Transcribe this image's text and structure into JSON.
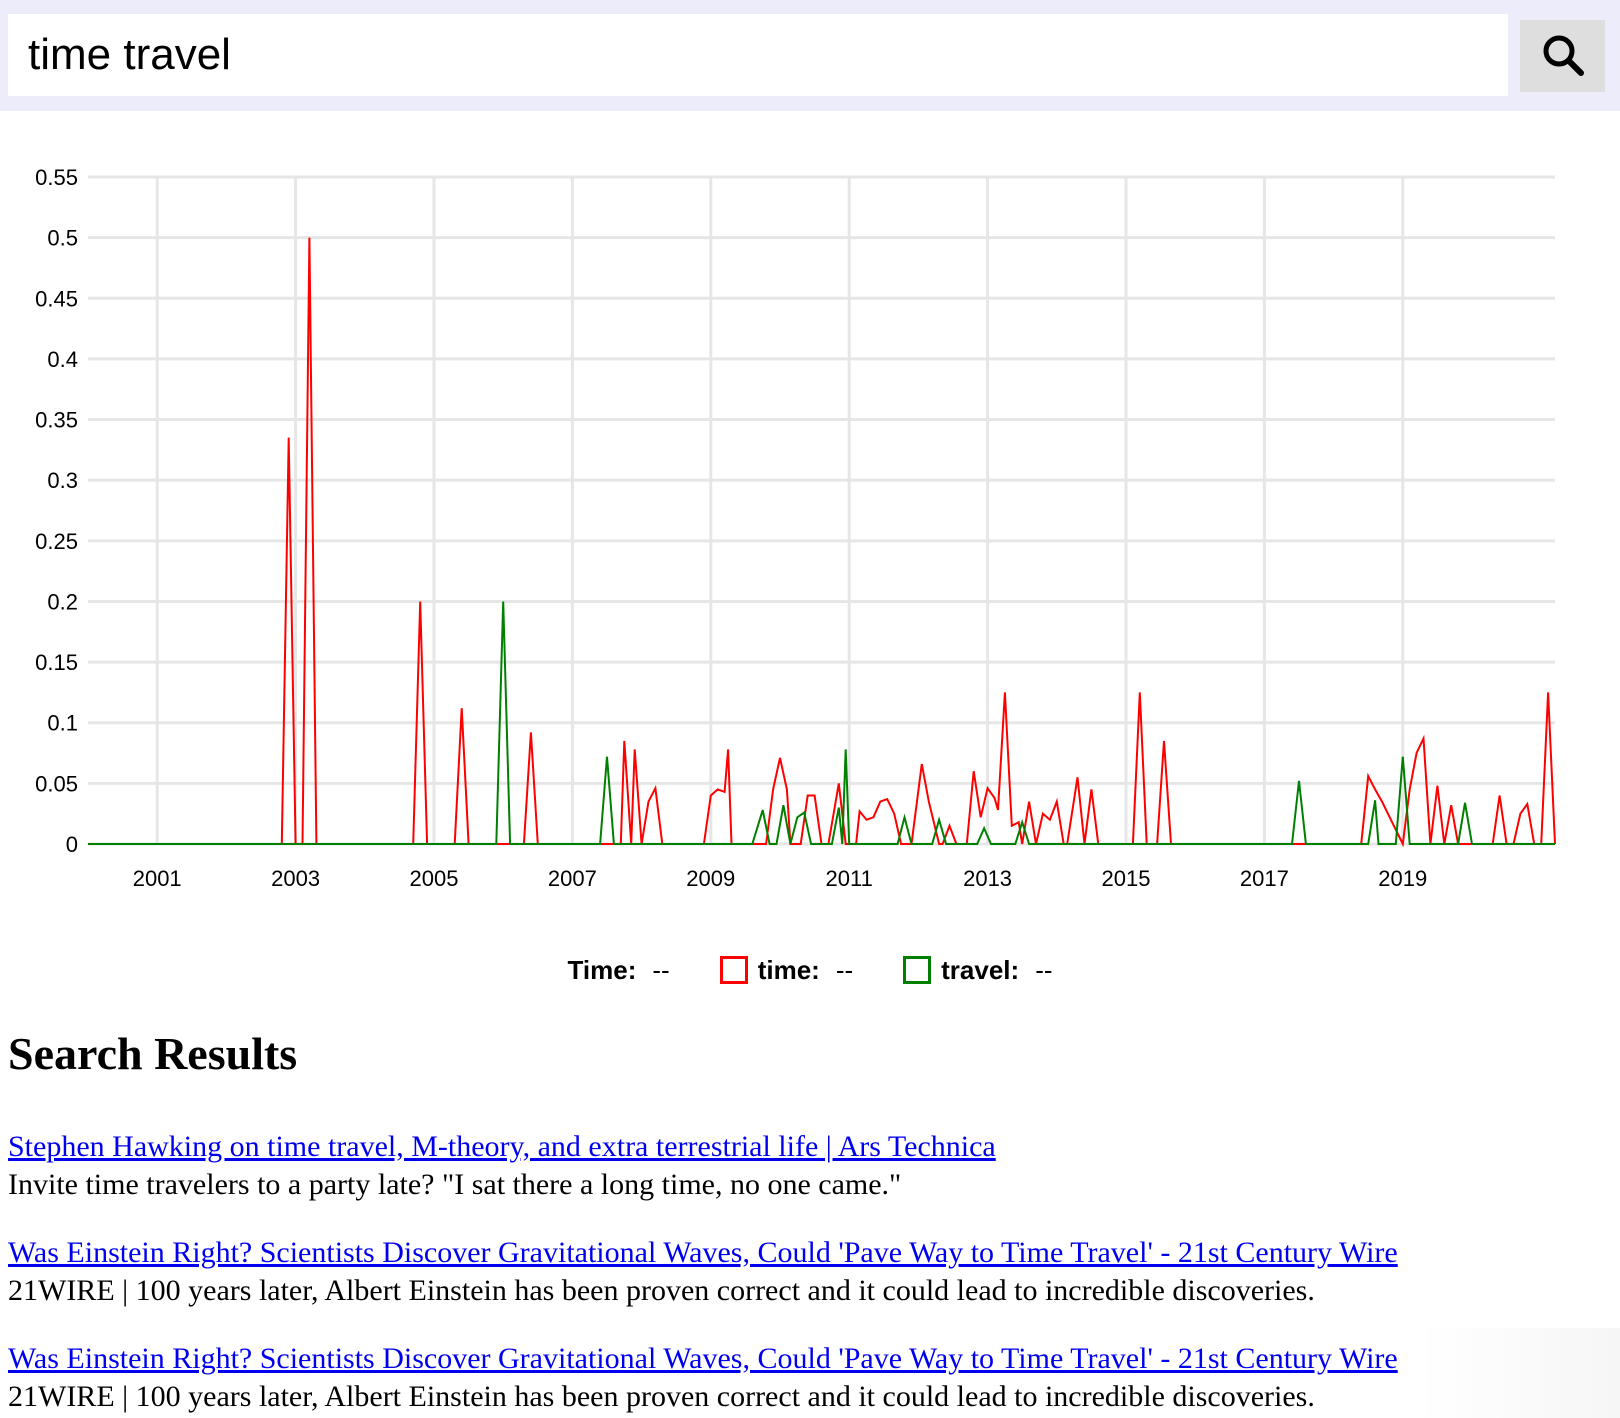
{
  "search": {
    "query": "time travel",
    "button_icon": "search-icon"
  },
  "chart_data": {
    "type": "line",
    "title": "",
    "xlabel": "",
    "ylabel": "",
    "ylim": [
      0,
      0.55
    ],
    "xlim": [
      2000,
      2021.2
    ],
    "yticks": [
      0,
      0.05,
      0.1,
      0.15,
      0.2,
      0.25,
      0.3,
      0.35,
      0.4,
      0.45,
      0.5,
      0.55
    ],
    "ytick_labels": [
      "0",
      "0.05",
      "0.1",
      "0.15",
      "0.2",
      "0.25",
      "0.3",
      "0.35",
      "0.4",
      "0.45",
      "0.5",
      "0.55"
    ],
    "xticks": [
      2001,
      2003,
      2005,
      2007,
      2009,
      2011,
      2013,
      2015,
      2017,
      2019
    ],
    "xtick_labels": [
      "2001",
      "2003",
      "2005",
      "2007",
      "2009",
      "2011",
      "2013",
      "2015",
      "2017",
      "2019"
    ],
    "grid": true,
    "legend_position": "bottom-center",
    "series": [
      {
        "name": "time",
        "color": "#ff0000",
        "x": [
          2000.0,
          2002.8,
          2002.9,
          2003.0,
          2003.1,
          2003.2,
          2003.3,
          2004.7,
          2004.8,
          2004.9,
          2005.3,
          2005.4,
          2005.5,
          2006.3,
          2006.4,
          2006.5,
          2007.7,
          2007.75,
          2007.85,
          2007.9,
          2008.0,
          2008.1,
          2008.2,
          2008.3,
          2008.4,
          2008.5,
          2008.9,
          2009.0,
          2009.1,
          2009.2,
          2009.25,
          2009.3,
          2009.8,
          2009.9,
          2010.0,
          2010.1,
          2010.15,
          2010.3,
          2010.4,
          2010.5,
          2010.6,
          2010.7,
          2010.85,
          2010.95,
          2011.1,
          2011.15,
          2011.25,
          2011.35,
          2011.45,
          2011.55,
          2011.65,
          2011.75,
          2011.85,
          2011.9,
          2012.05,
          2012.15,
          2012.3,
          2012.35,
          2012.45,
          2012.55,
          2012.7,
          2012.8,
          2012.9,
          2013.0,
          2013.1,
          2013.15,
          2013.25,
          2013.35,
          2013.45,
          2013.5,
          2013.6,
          2013.7,
          2013.8,
          2013.9,
          2014.0,
          2014.1,
          2014.15,
          2014.3,
          2014.4,
          2014.5,
          2014.6,
          2014.7,
          2015.1,
          2015.2,
          2015.3,
          2015.45,
          2015.55,
          2015.65,
          2018.4,
          2018.5,
          2018.6,
          2018.7,
          2019.0,
          2019.1,
          2019.2,
          2019.3,
          2019.4,
          2019.5,
          2019.6,
          2019.7,
          2019.8,
          2019.9,
          2020.3,
          2020.4,
          2020.5,
          2020.6,
          2020.7,
          2020.8,
          2020.9,
          2021.0,
          2021.1,
          2021.2
        ],
        "values": [
          0,
          0,
          0.335,
          0,
          0,
          0.5,
          0,
          0,
          0.2,
          0,
          0,
          0.112,
          0,
          0,
          0.092,
          0,
          0,
          0.085,
          0,
          0.078,
          0,
          0.035,
          0.046,
          0,
          0,
          0,
          0,
          0.04,
          0.045,
          0.043,
          0.078,
          0,
          0,
          0.045,
          0.071,
          0.045,
          0,
          0,
          0.04,
          0.04,
          0,
          0,
          0.05,
          0,
          0,
          0.027,
          0.02,
          0.022,
          0.035,
          0.037,
          0.025,
          0,
          0,
          0,
          0.066,
          0.035,
          0,
          0,
          0.015,
          0,
          0,
          0.06,
          0.022,
          0.046,
          0.038,
          0.028,
          0.125,
          0.015,
          0.018,
          0,
          0.035,
          0,
          0.025,
          0.02,
          0.035,
          0,
          0,
          0.055,
          0,
          0.045,
          0,
          0,
          0,
          0.125,
          0,
          0,
          0.085,
          0,
          0,
          0.056,
          0.045,
          0.035,
          0,
          0.045,
          0.075,
          0.087,
          0,
          0.048,
          0,
          0.032,
          0,
          0,
          0,
          0.04,
          0,
          0,
          0.025,
          0.033,
          0,
          0,
          0.125,
          0
        ]
      },
      {
        "name": "travel",
        "color": "#008000",
        "x": [
          2000.0,
          2005.9,
          2006.0,
          2006.1,
          2007.4,
          2007.5,
          2007.6,
          2009.6,
          2009.75,
          2009.85,
          2009.95,
          2010.05,
          2010.15,
          2010.25,
          2010.35,
          2010.45,
          2010.55,
          2010.75,
          2010.85,
          2010.9,
          2010.95,
          2011.0,
          2011.05,
          2011.7,
          2011.8,
          2011.9,
          2012.2,
          2012.3,
          2012.4,
          2012.85,
          2012.95,
          2013.05,
          2013.4,
          2013.5,
          2013.6,
          2017.4,
          2017.5,
          2017.6,
          2018.5,
          2018.6,
          2018.65,
          2018.9,
          2019.0,
          2019.1,
          2019.8,
          2019.9,
          2020.0,
          2021.2
        ],
        "values": [
          0,
          0,
          0.2,
          0,
          0,
          0.072,
          0,
          0,
          0.028,
          0,
          0,
          0.032,
          0,
          0.022,
          0.026,
          0,
          0,
          0,
          0.03,
          0,
          0.078,
          0,
          0,
          0,
          0.022,
          0,
          0,
          0.02,
          0,
          0,
          0.013,
          0,
          0,
          0.018,
          0,
          0,
          0.052,
          0,
          0,
          0.036,
          0,
          0,
          0.072,
          0,
          0,
          0.034,
          0,
          0
        ]
      }
    ]
  },
  "legend": {
    "time_label": "Time:",
    "time_value": "--",
    "series": [
      {
        "label": "time:",
        "value": "--",
        "color": "#ff0000"
      },
      {
        "label": "travel:",
        "value": "--",
        "color": "#008000"
      }
    ]
  },
  "results": {
    "heading": "Search Results",
    "items": [
      {
        "title": "Stephen Hawking on time travel, M-theory, and extra terrestrial life | Ars Technica",
        "snippet": "Invite time travelers to a party late? \"I sat there a long time, no one came.\""
      },
      {
        "title": "Was Einstein Right? Scientists Discover Gravitational Waves, Could 'Pave Way to Time Travel' - 21st Century Wire",
        "snippet": "21WIRE | 100 years later, Albert Einstein has been proven correct and it could lead to incredible discoveries."
      },
      {
        "title": "Was Einstein Right? Scientists Discover Gravitational Waves, Could 'Pave Way to Time Travel' - 21st Century Wire",
        "snippet": "21WIRE | 100 years later, Albert Einstein has been proven correct and it could lead to incredible discoveries."
      }
    ]
  }
}
